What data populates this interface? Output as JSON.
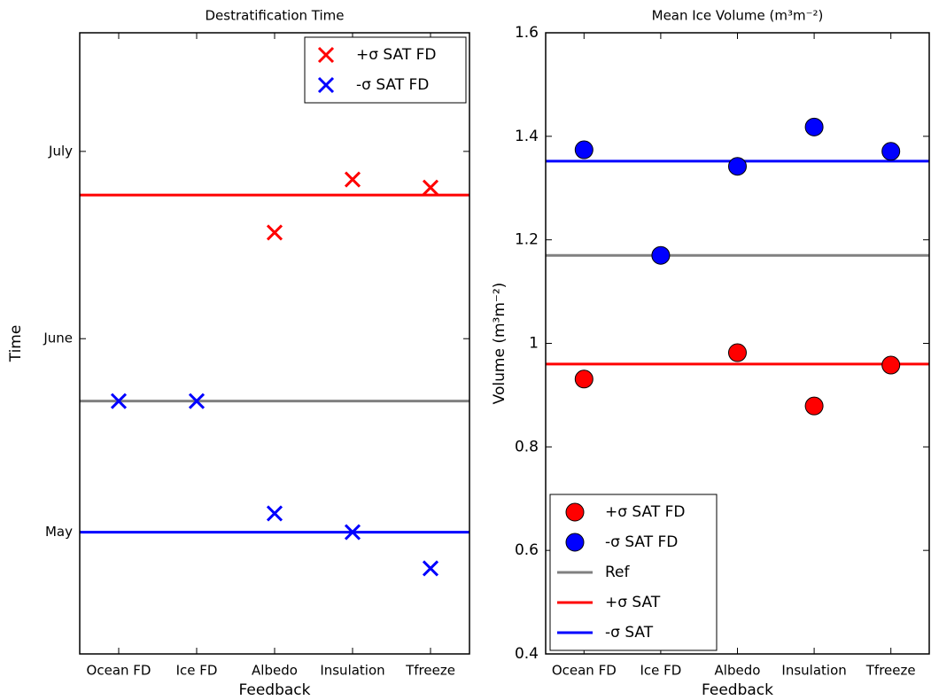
{
  "chart_data": [
    {
      "type": "scatter",
      "title": "Destratification Time",
      "x_label": "Feedback",
      "y_label": "Time",
      "categories": [
        "Ocean FD",
        "Ice FD",
        "Albedo",
        "Insulation",
        "Tfreeze"
      ],
      "ylim": [
        101.5,
        201
      ],
      "yticks": [
        {
          "value": 121,
          "label": "May"
        },
        {
          "value": 152,
          "label": "June"
        },
        {
          "value": 182,
          "label": "July"
        }
      ],
      "legend": "upper right",
      "series": [
        {
          "name": "+σ SAT FD",
          "color": "#ff0000",
          "marker": "x",
          "values": [
            null,
            null,
            169,
            177.5,
            176.2
          ]
        },
        {
          "name": "-σ SAT FD",
          "color": "#0000ff",
          "marker": "x",
          "values": [
            142,
            142,
            124,
            121,
            115.2
          ]
        }
      ],
      "lines": [
        {
          "color": "#808080",
          "value": 142
        },
        {
          "color": "#ff0000",
          "value": 175
        },
        {
          "color": "#0000ff",
          "value": 121
        }
      ]
    },
    {
      "type": "scatter",
      "title": "Mean Ice Volume (m³m⁻²)",
      "x_label": "Feedback",
      "y_label": "Volume (m³m⁻²)",
      "categories": [
        "Ocean FD",
        "Ice FD",
        "Albedo",
        "Insulation",
        "Tfreeze"
      ],
      "ylim": [
        0.4,
        1.6
      ],
      "yticks": [
        0.4,
        0.6,
        0.8,
        1.0,
        1.2,
        1.4,
        1.6
      ],
      "legend": "lower left",
      "series": [
        {
          "name": "+σ SAT FD",
          "color": "#ff0000",
          "marker": "o",
          "values": [
            0.931,
            null,
            0.982,
            0.879,
            0.958
          ]
        },
        {
          "name": "-σ SAT FD",
          "color": "#0000ff",
          "marker": "o",
          "values": [
            1.374,
            1.17,
            1.342,
            1.418,
            1.371
          ]
        }
      ],
      "lines": [
        {
          "name": "Ref",
          "color": "#808080",
          "value": 1.17
        },
        {
          "name": "+σ SAT",
          "color": "#ff0000",
          "value": 0.96
        },
        {
          "name": "-σ SAT",
          "color": "#0000ff",
          "value": 1.352
        }
      ]
    }
  ]
}
